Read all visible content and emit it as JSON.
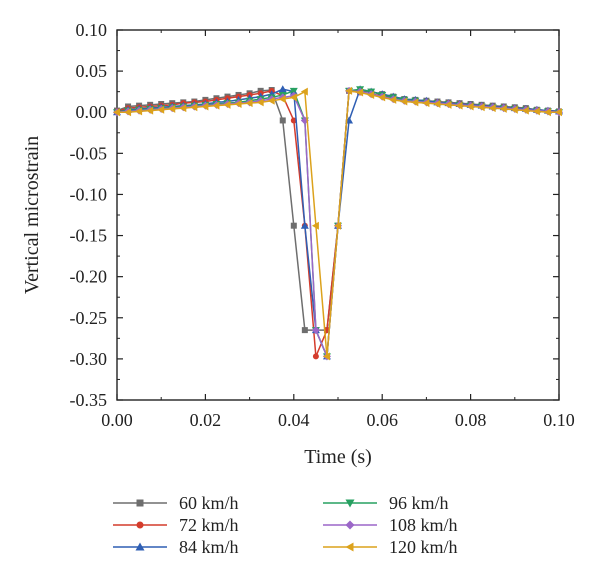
{
  "chart_data": {
    "type": "line",
    "xlabel": "Time (s)",
    "ylabel": "Vertical microstrain",
    "xlim": [
      0.0,
      0.1
    ],
    "ylim": [
      -0.35,
      0.1
    ],
    "xticks": [
      "0.00",
      "0.02",
      "0.04",
      "0.06",
      "0.08",
      "0.10"
    ],
    "xtick_values": [
      0.0,
      0.02,
      0.04,
      0.06,
      0.08,
      0.1
    ],
    "yticks": [
      "0.10",
      "0.05",
      "0.00",
      "-0.05",
      "-0.10",
      "-0.15",
      "-0.20",
      "-0.25",
      "-0.30",
      "-0.35"
    ],
    "ytick_values": [
      0.1,
      0.05,
      0.0,
      -0.05,
      -0.1,
      -0.15,
      -0.2,
      -0.25,
      -0.3,
      -0.35
    ],
    "grid": false,
    "legend_position": "bottom",
    "series": [
      {
        "name": "60 km/h",
        "color": "#6e6e6e",
        "marker": "square",
        "x": [
          0.0,
          0.0025,
          0.005,
          0.0075,
          0.01,
          0.0125,
          0.015,
          0.0175,
          0.02,
          0.0225,
          0.025,
          0.0275,
          0.03,
          0.0325,
          0.035,
          0.0375,
          0.04,
          0.0425,
          0.045,
          0.0475,
          0.05,
          0.0525,
          0.055,
          0.0575,
          0.06,
          0.0625,
          0.065,
          0.0675,
          0.07,
          0.0725,
          0.075,
          0.0775,
          0.08,
          0.0825,
          0.085,
          0.0875,
          0.09,
          0.0925,
          0.095,
          0.0975,
          0.1
        ],
        "y": [
          0.002,
          0.007,
          0.008,
          0.009,
          0.01,
          0.011,
          0.012,
          0.013,
          0.015,
          0.017,
          0.019,
          0.021,
          0.023,
          0.026,
          0.027,
          -0.01,
          -0.138,
          -0.265,
          -0.265,
          -0.265,
          -0.138,
          0.026,
          0.025,
          0.025,
          0.022,
          0.019,
          0.016,
          0.015,
          0.014,
          0.013,
          0.012,
          0.011,
          0.01,
          0.009,
          0.008,
          0.007,
          0.006,
          0.005,
          0.003,
          0.002,
          0.001
        ]
      },
      {
        "name": "72 km/h",
        "color": "#d43c2c",
        "marker": "circle",
        "x": [
          0.0,
          0.0025,
          0.005,
          0.0075,
          0.01,
          0.0125,
          0.015,
          0.0175,
          0.02,
          0.0225,
          0.025,
          0.0275,
          0.03,
          0.0325,
          0.035,
          0.0375,
          0.04,
          0.0425,
          0.045,
          0.0475,
          0.05,
          0.0525,
          0.055,
          0.0575,
          0.06,
          0.0625,
          0.065,
          0.0675,
          0.07,
          0.0725,
          0.075,
          0.0775,
          0.08,
          0.0825,
          0.085,
          0.0875,
          0.09,
          0.0925,
          0.095,
          0.0975,
          0.1
        ],
        "y": [
          0.001,
          0.005,
          0.006,
          0.007,
          0.008,
          0.009,
          0.011,
          0.012,
          0.013,
          0.015,
          0.017,
          0.019,
          0.021,
          0.023,
          0.026,
          0.02,
          -0.01,
          -0.138,
          -0.297,
          -0.265,
          -0.138,
          0.026,
          0.024,
          0.022,
          0.02,
          0.018,
          0.015,
          0.014,
          0.013,
          0.012,
          0.011,
          0.01,
          0.009,
          0.008,
          0.007,
          0.006,
          0.005,
          0.004,
          0.003,
          0.002,
          0.001
        ]
      },
      {
        "name": "84 km/h",
        "color": "#2f5fb4",
        "marker": "triangle-up",
        "x": [
          0.0,
          0.0025,
          0.005,
          0.0075,
          0.01,
          0.0125,
          0.015,
          0.0175,
          0.02,
          0.0225,
          0.025,
          0.0275,
          0.03,
          0.0325,
          0.035,
          0.0375,
          0.04,
          0.0425,
          0.045,
          0.0475,
          0.05,
          0.0525,
          0.055,
          0.0575,
          0.06,
          0.0625,
          0.065,
          0.0675,
          0.07,
          0.0725,
          0.075,
          0.0775,
          0.08,
          0.0825,
          0.085,
          0.0875,
          0.09,
          0.0925,
          0.095,
          0.0975,
          0.1
        ],
        "y": [
          0.0,
          0.003,
          0.004,
          0.005,
          0.006,
          0.007,
          0.008,
          0.009,
          0.01,
          0.012,
          0.013,
          0.015,
          0.017,
          0.019,
          0.022,
          0.028,
          0.025,
          -0.138,
          -0.265,
          -0.297,
          -0.138,
          -0.01,
          0.028,
          0.025,
          0.022,
          0.019,
          0.016,
          0.015,
          0.014,
          0.012,
          0.011,
          0.01,
          0.009,
          0.008,
          0.007,
          0.006,
          0.005,
          0.004,
          0.003,
          0.002,
          0.001
        ]
      },
      {
        "name": "96 km/h",
        "color": "#27a061",
        "marker": "triangle-down",
        "x": [
          0.0,
          0.0025,
          0.005,
          0.0075,
          0.01,
          0.0125,
          0.015,
          0.0175,
          0.02,
          0.0225,
          0.025,
          0.0275,
          0.03,
          0.0325,
          0.035,
          0.0375,
          0.04,
          0.0425,
          0.045,
          0.0475,
          0.05,
          0.0525,
          0.055,
          0.0575,
          0.06,
          0.0625,
          0.065,
          0.0675,
          0.07,
          0.0725,
          0.075,
          0.0775,
          0.08,
          0.0825,
          0.085,
          0.0875,
          0.09,
          0.0925,
          0.095,
          0.0975,
          0.1
        ],
        "y": [
          0.0,
          0.002,
          0.003,
          0.004,
          0.005,
          0.006,
          0.007,
          0.008,
          0.009,
          0.01,
          0.011,
          0.012,
          0.014,
          0.016,
          0.018,
          0.021,
          0.026,
          -0.01,
          -0.265,
          -0.297,
          -0.138,
          0.026,
          0.028,
          0.025,
          0.021,
          0.018,
          0.015,
          0.014,
          0.012,
          0.011,
          0.01,
          0.009,
          0.008,
          0.007,
          0.006,
          0.005,
          0.004,
          0.003,
          0.002,
          0.001,
          0.0
        ]
      },
      {
        "name": "108 km/h",
        "color": "#9b67c8",
        "marker": "diamond",
        "x": [
          0.0,
          0.0025,
          0.005,
          0.0075,
          0.01,
          0.0125,
          0.015,
          0.0175,
          0.02,
          0.0225,
          0.025,
          0.0275,
          0.03,
          0.0325,
          0.035,
          0.0375,
          0.04,
          0.0425,
          0.045,
          0.0475,
          0.05,
          0.0525,
          0.055,
          0.0575,
          0.06,
          0.0625,
          0.065,
          0.0675,
          0.07,
          0.0725,
          0.075,
          0.0775,
          0.08,
          0.0825,
          0.085,
          0.0875,
          0.09,
          0.0925,
          0.095,
          0.0975,
          0.1
        ],
        "y": [
          0.0,
          0.001,
          0.002,
          0.003,
          0.004,
          0.005,
          0.006,
          0.007,
          0.008,
          0.009,
          0.01,
          0.011,
          0.012,
          0.014,
          0.016,
          0.018,
          0.02,
          -0.01,
          -0.265,
          -0.297,
          -0.138,
          0.026,
          0.025,
          0.022,
          0.019,
          0.016,
          0.014,
          0.013,
          0.012,
          0.011,
          0.01,
          0.009,
          0.008,
          0.007,
          0.006,
          0.005,
          0.004,
          0.003,
          0.002,
          0.001,
          0.0
        ]
      },
      {
        "name": "120 km/h",
        "color": "#dca21c",
        "marker": "triangle-left",
        "x": [
          0.0,
          0.0025,
          0.005,
          0.0075,
          0.01,
          0.0125,
          0.015,
          0.0175,
          0.02,
          0.0225,
          0.025,
          0.0275,
          0.03,
          0.0325,
          0.035,
          0.0375,
          0.04,
          0.0425,
          0.045,
          0.0475,
          0.05,
          0.0525,
          0.055,
          0.0575,
          0.06,
          0.0625,
          0.065,
          0.0675,
          0.07,
          0.0725,
          0.075,
          0.0775,
          0.08,
          0.0825,
          0.085,
          0.0875,
          0.09,
          0.0925,
          0.095,
          0.0975,
          0.1
        ],
        "y": [
          0.0,
          0.0,
          0.001,
          0.002,
          0.003,
          0.004,
          0.005,
          0.006,
          0.007,
          0.008,
          0.009,
          0.01,
          0.011,
          0.012,
          0.014,
          0.016,
          0.018,
          0.025,
          -0.138,
          -0.297,
          -0.138,
          0.026,
          0.024,
          0.021,
          0.018,
          0.015,
          0.013,
          0.012,
          0.011,
          0.01,
          0.009,
          0.008,
          0.007,
          0.006,
          0.005,
          0.004,
          0.003,
          0.002,
          0.001,
          0.0,
          0.0
        ]
      }
    ]
  }
}
